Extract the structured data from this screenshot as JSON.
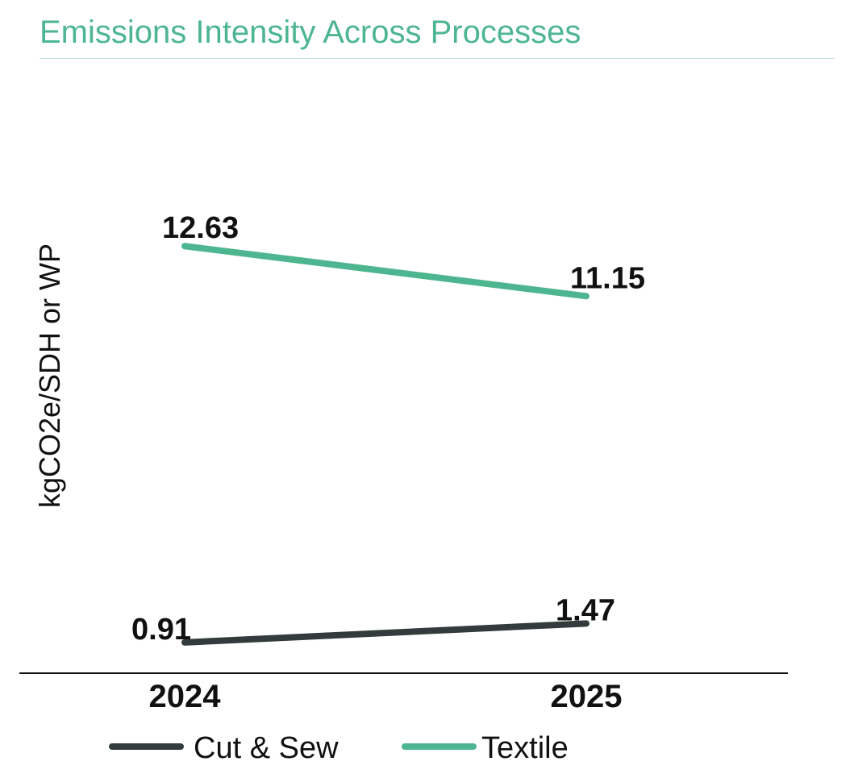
{
  "chart_data": {
    "type": "line",
    "title": "Emissions Intensity Across Processes",
    "ylabel": "kgCO2e/SDH or WP",
    "xlabel": "",
    "categories": [
      "2024",
      "2025"
    ],
    "series": [
      {
        "name": "Cut & Sew",
        "values": [
          0.91,
          1.47
        ],
        "labels": [
          "0.91",
          "1.47"
        ],
        "color": "#333b3d"
      },
      {
        "name": "Textile",
        "values": [
          12.63,
          11.15
        ],
        "labels": [
          "12.63",
          "11.15"
        ],
        "color": "#4db690"
      }
    ],
    "ylim": [
      0,
      18
    ],
    "grid": false,
    "legend": "bottom"
  }
}
